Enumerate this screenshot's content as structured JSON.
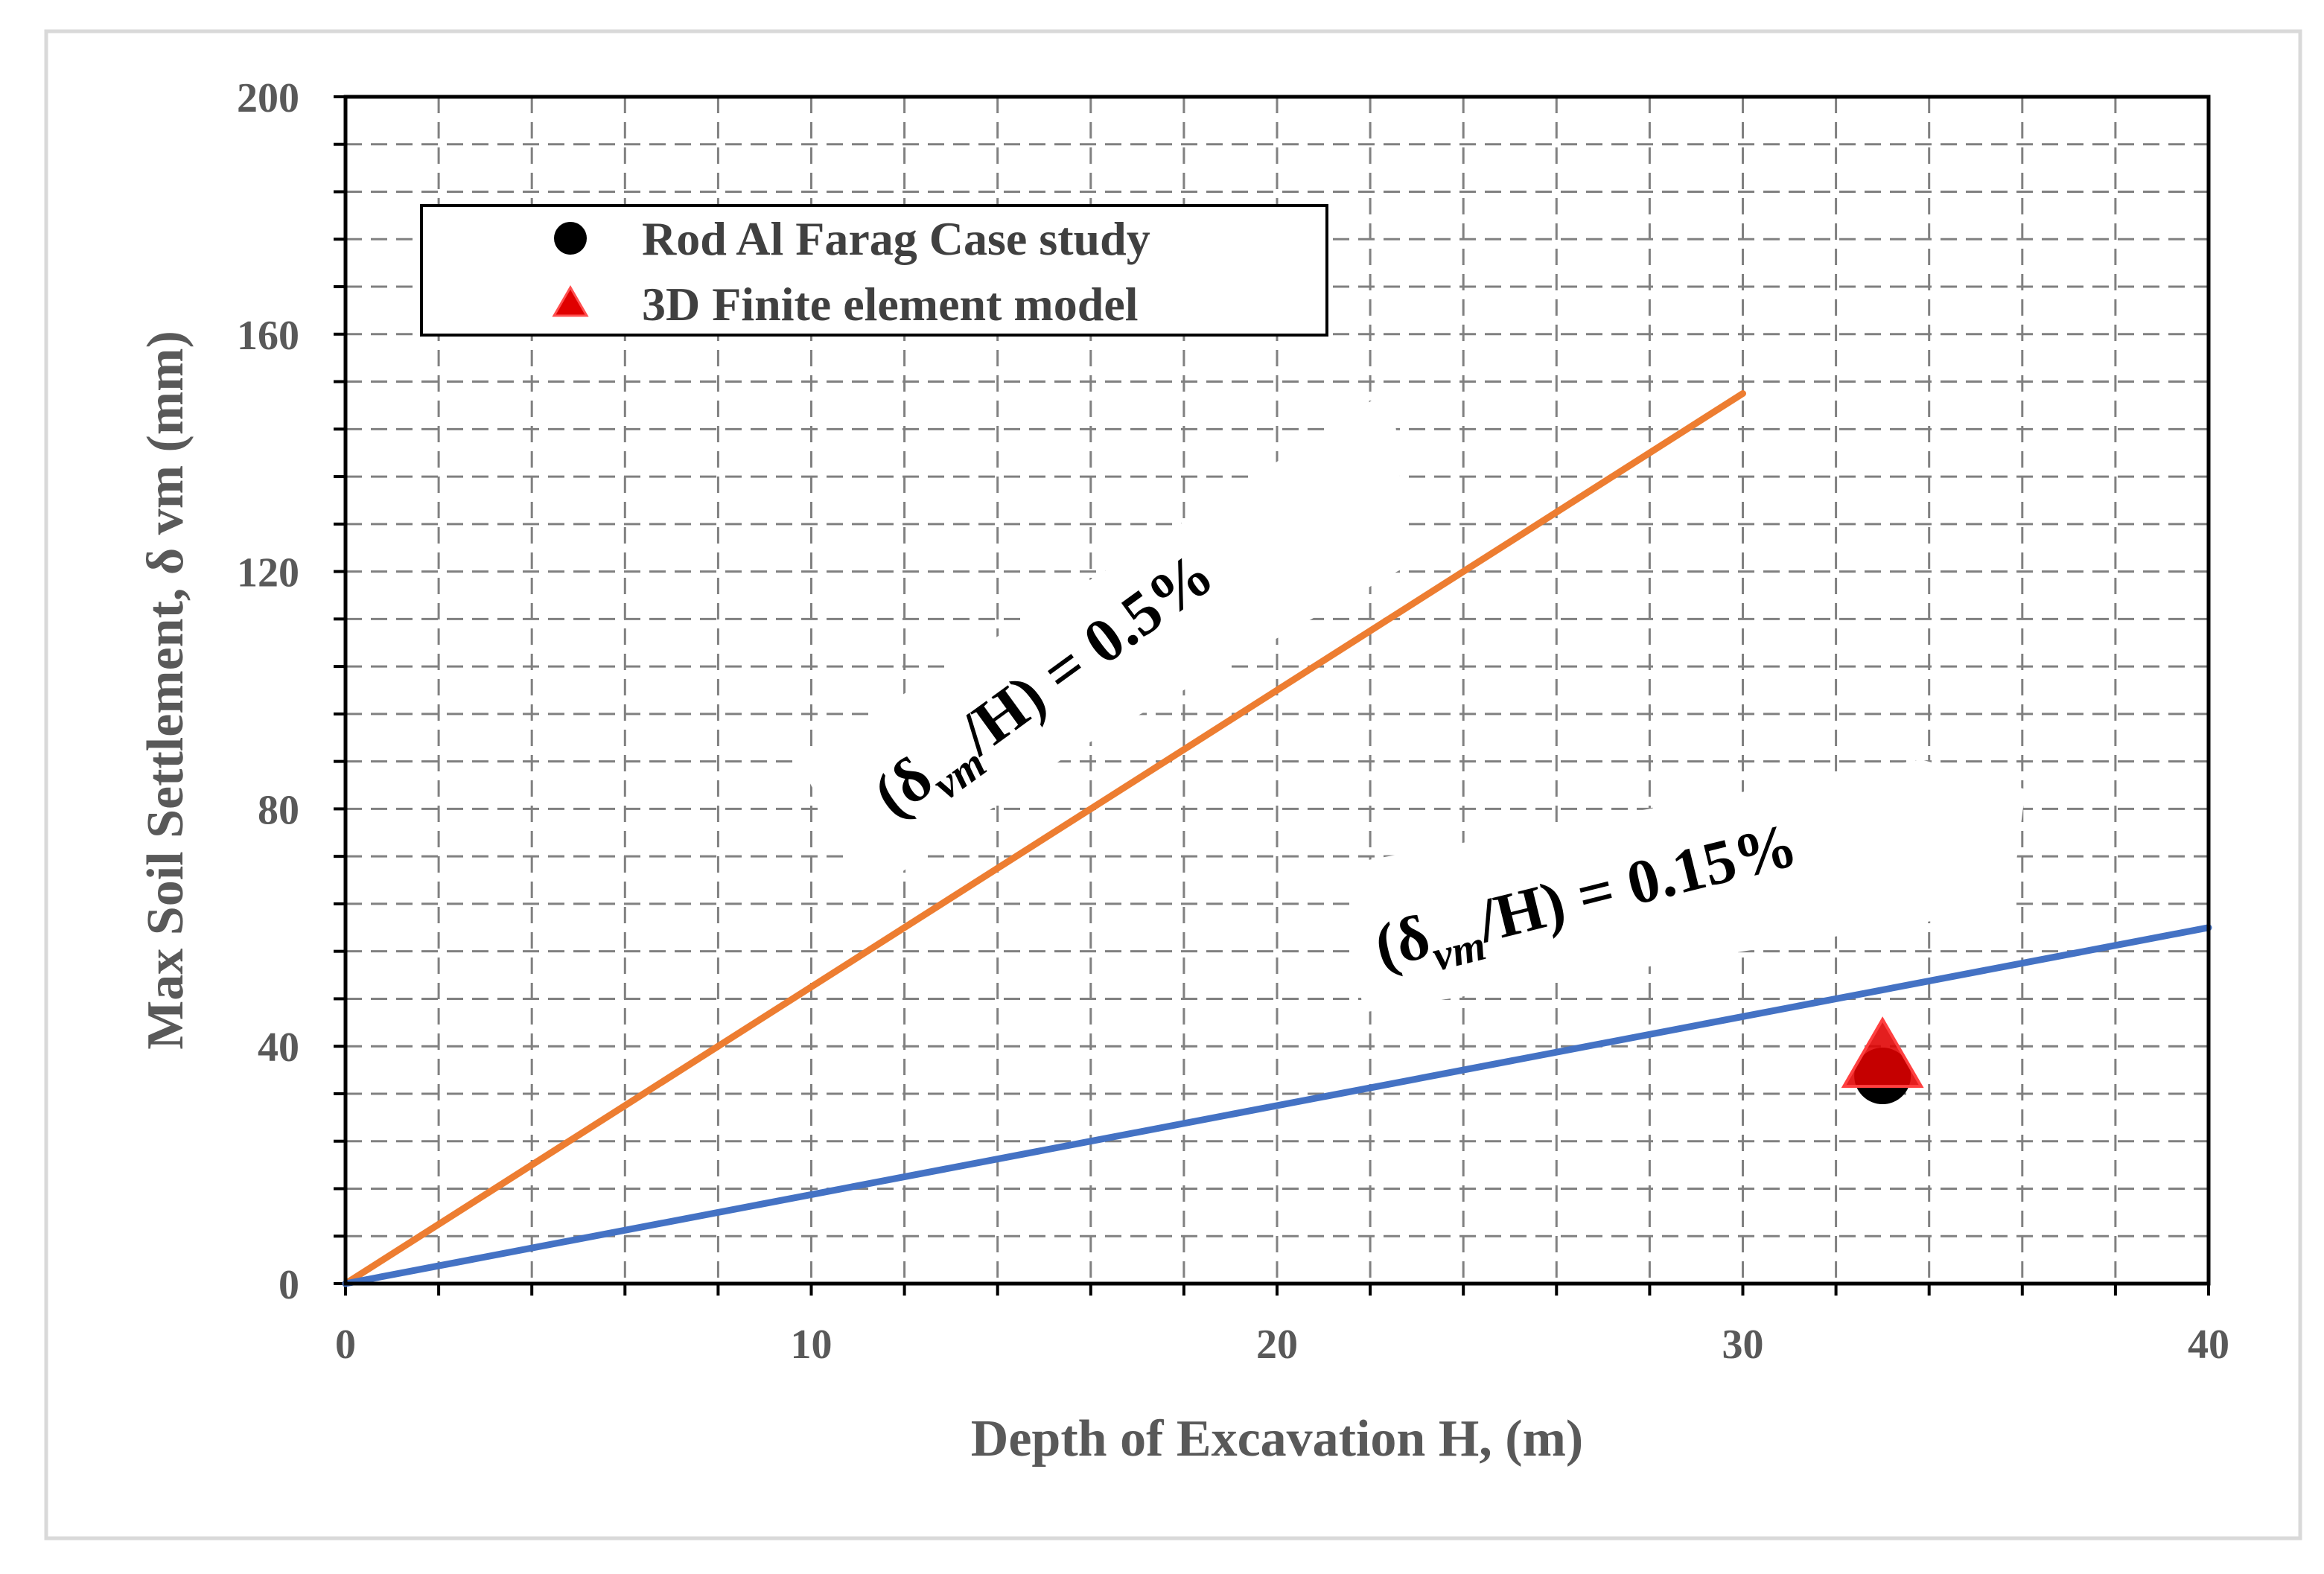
{
  "chart_data": {
    "type": "line",
    "title": "",
    "xlabel": "Depth of Excavation H, (m)",
    "ylabel": "Max Soil Settlement, δ vm (mm)",
    "xlim": [
      0,
      40
    ],
    "ylim": [
      0,
      200
    ],
    "xticks": [
      0,
      10,
      20,
      30,
      40
    ],
    "yticks": [
      0,
      40,
      80,
      120,
      160,
      200
    ],
    "grid": true,
    "series": [
      {
        "name": "(δvm/H) = 0.5%",
        "kind": "line",
        "color": "#ED7D31",
        "x": [
          0,
          30
        ],
        "y": [
          0,
          150
        ]
      },
      {
        "name": "(δvm/H) = 0.15%",
        "kind": "line",
        "color": "#4472C4",
        "x": [
          0,
          40
        ],
        "y": [
          0,
          60
        ]
      },
      {
        "name": "Rod Al Farag Case study",
        "kind": "marker",
        "marker": "circle",
        "color": "#000000",
        "x": [
          33
        ],
        "y": [
          35
        ]
      },
      {
        "name": "3D Finite element model",
        "kind": "marker",
        "marker": "triangle",
        "color": "#E00000",
        "x": [
          33
        ],
        "y": [
          37
        ]
      }
    ],
    "legend": {
      "position": "top-left",
      "entries": [
        {
          "label": "Rod Al Farag Case study",
          "marker": "circle",
          "color": "#000000"
        },
        {
          "label": "3D Finite element model",
          "marker": "triangle",
          "color": "#E00000"
        }
      ]
    },
    "annotations": [
      {
        "id": "orange",
        "prefix": "(δ",
        "sub": "vm",
        "suffix": "/H) = 0.5%"
      },
      {
        "id": "blue",
        "prefix": "(δ",
        "sub": "vm",
        "suffix": "/H) = 0.15%"
      }
    ]
  }
}
